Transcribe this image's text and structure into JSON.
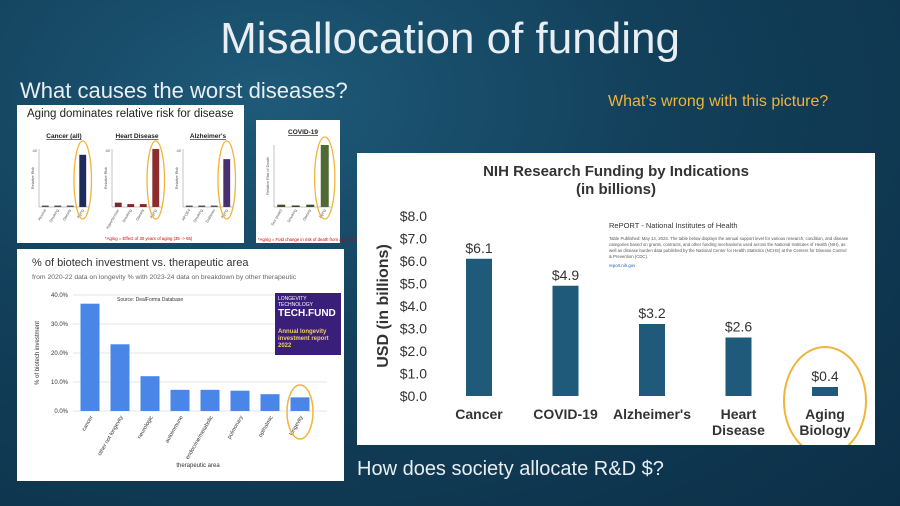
{
  "slide": {
    "title": "Misallocation of funding",
    "question": "What causes the worst diseases?",
    "wrong": "What’s wrong with this picture?",
    "society": "How does society allocate R&D $?"
  },
  "colors": {
    "accent": "#f0b43c",
    "bar_main": "#1f5a7a",
    "bar_blue": "#4a86e8"
  },
  "risk_panel": {
    "title": "Aging dominates relative risk for disease",
    "footnote": "*Aging = Effect of 30 years of aging (35 -> 65)",
    "covid_footnote": "*Aging = Fold change in risk of death from age 45 to 85",
    "groups": [
      {
        "title": "Cancer (all)",
        "ylabel": "Relative Risk",
        "ytop": "40",
        "categories": [
          "Alcohol",
          "Smoking",
          "Obesity",
          "Aging"
        ],
        "values": [
          1,
          1,
          1,
          36
        ],
        "colors": [
          "#555",
          "#555",
          "#555",
          "#1e2a5a"
        ]
      },
      {
        "title": "Heart Disease",
        "ylabel": "Relative Risk",
        "ytop": "40",
        "categories": [
          "Hypertension",
          "Smoking",
          "Obesity",
          "Aging"
        ],
        "values": [
          3,
          2,
          2,
          40
        ],
        "colors": [
          "#7a2a2a",
          "#7a2a2a",
          "#7a2a2a",
          "#8c2e2e"
        ]
      },
      {
        "title": "Alzheimer's",
        "ylabel": "Relative Risk",
        "ytop": "40",
        "categories": [
          "APOE4",
          "Smoking",
          "Diabetes",
          "Aging"
        ],
        "values": [
          1,
          1,
          1,
          33
        ],
        "colors": [
          "#555",
          "#555",
          "#555",
          "#4a2f6e"
        ]
      },
      {
        "title": "COVID-19",
        "ylabel": "Relative Risk of Death",
        "ytop": "",
        "categories": [
          "Sex (male)",
          "Smoking",
          "Obesity",
          "Aging"
        ],
        "values": [
          1.5,
          1,
          1.5,
          40
        ],
        "colors": [
          "#3d4f2a",
          "#3d4f2a",
          "#3d4f2a",
          "#4f6a35"
        ]
      }
    ]
  },
  "biotech_panel": {
    "title": "% of biotech investment vs. therapeutic area",
    "subtitle": "from 2020-22 data on longevity % with 2023-24 data on breakdown by other therapeutic",
    "source": "Source: DealForma Database",
    "inset_brand": "LONGEVITY TECHNOLOGY",
    "inset_brand2": "TECH.FUND",
    "inset_report": "Annual longevity investment report 2022"
  },
  "nih_panel": {
    "title_line1": "NIH Research Funding by Indications",
    "title_line2": "(in billions)",
    "report_header": "RePORT - National Institutes of Health",
    "report_body": "Table Published: May 14, 2024. The table below displays the annual support level for various research, condition, and disease categories based on grants, contracts, and other funding mechanisms used across the National Institutes of Health (NIH), as well as disease burden data published by the National Center for Health Statistics (NCHS) at the Centers for Disease Control & Prevention (CDC).",
    "report_link": "report.nih.gov"
  },
  "chart_data": [
    {
      "type": "bar",
      "title": "NIH Research Funding by Indications (in billions)",
      "categories": [
        "Cancer",
        "COVID-19",
        "Alzheimer's",
        "Heart Disease",
        "Aging Biology"
      ],
      "category_lines": [
        [
          "Cancer"
        ],
        [
          "COVID-19"
        ],
        [
          "Alzheimer's"
        ],
        [
          "Heart",
          "Disease"
        ],
        [
          "Aging",
          "Biology"
        ]
      ],
      "values": [
        6.1,
        4.9,
        3.2,
        2.6,
        0.4
      ],
      "data_labels": [
        "$6.1",
        "$4.9",
        "$3.2",
        "$2.6",
        "$0.4"
      ],
      "ylabel": "USD (in billions)",
      "ylim": [
        0,
        8
      ],
      "yticks": [
        "$0.0",
        "$1.0",
        "$2.0",
        "$3.0",
        "$4.0",
        "$5.0",
        "$6.0",
        "$7.0",
        "$8.0"
      ],
      "grid": false,
      "highlight": "Aging Biology"
    },
    {
      "type": "bar",
      "title": "% of biotech investment vs. therapeutic area",
      "categories": [
        "cancer",
        "other not longevity",
        "neurologic",
        "autoimmune",
        "endocrine/metabolic",
        "pulmonary",
        "opthalmic",
        "longevity"
      ],
      "values": [
        37,
        23,
        12,
        7.3,
        7.3,
        7,
        5.8,
        4.7
      ],
      "ylabel": "% of biotech investment",
      "xlabel": "therapeutic area",
      "ylim": [
        0,
        40
      ],
      "yticks": [
        "0.0%",
        "10.0%",
        "20.0%",
        "30.0%",
        "40.0%"
      ],
      "grid": true,
      "highlight": "longevity"
    }
  ]
}
